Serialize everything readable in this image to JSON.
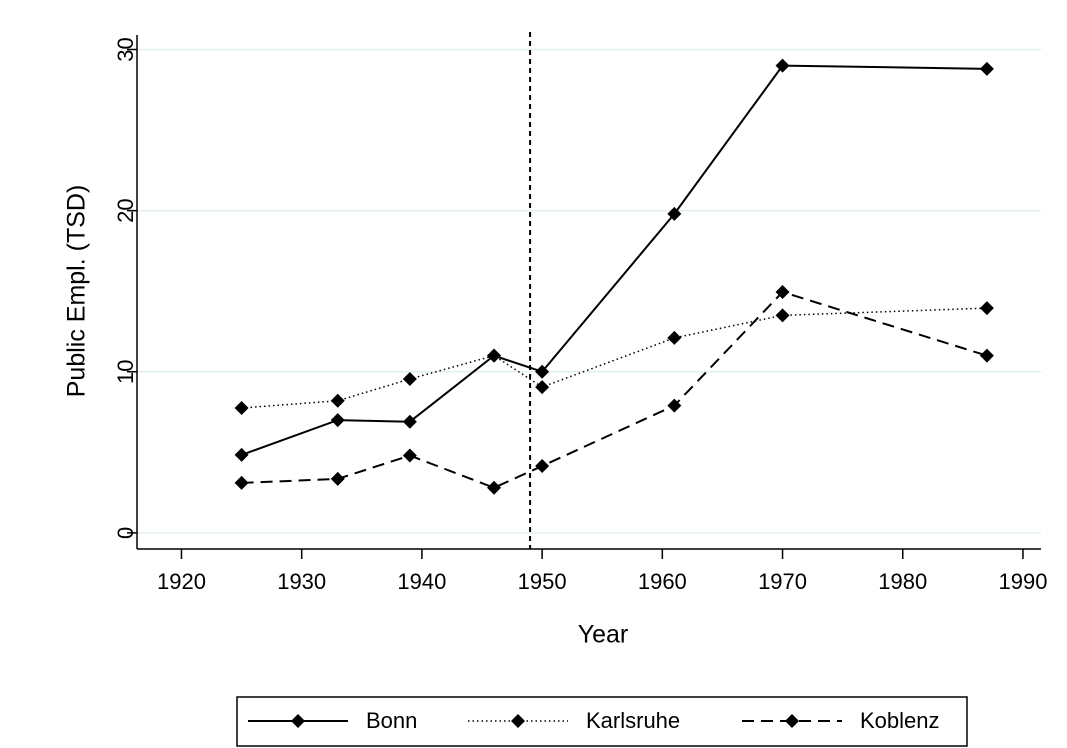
{
  "chart_data": {
    "type": "line",
    "x_label": "Year",
    "y_label": "Public Empl. (TSD)",
    "x": [
      1925,
      1933,
      1939,
      1946,
      1950,
      1961,
      1970,
      1987
    ],
    "series": [
      {
        "name": "Bonn",
        "color": "#000000",
        "style": "solid",
        "values": [
          4.84,
          7.0,
          6.9,
          11.0,
          10.0,
          19.8,
          29.0,
          28.8
        ]
      },
      {
        "name": "Karlsruhe",
        "color": "#000000",
        "style": "dotted",
        "values": [
          7.75,
          8.2,
          9.55,
          11.0,
          9.05,
          12.1,
          13.5,
          13.95
        ]
      },
      {
        "name": "Koblenz",
        "color": "#000000",
        "style": "dashed",
        "values": [
          3.1,
          3.35,
          4.8,
          2.8,
          4.15,
          7.9,
          14.95,
          11.0
        ]
      }
    ],
    "vlines": [
      1949
    ],
    "xlim": [
      1916.3,
      1991.5
    ],
    "xticks": [
      1920,
      1930,
      1940,
      1950,
      1960,
      1970,
      1980,
      1990
    ],
    "ylim": [
      -1,
      30.9
    ],
    "yticks": [
      0,
      10,
      20,
      30
    ],
    "grid": true,
    "legend": "bottom"
  }
}
